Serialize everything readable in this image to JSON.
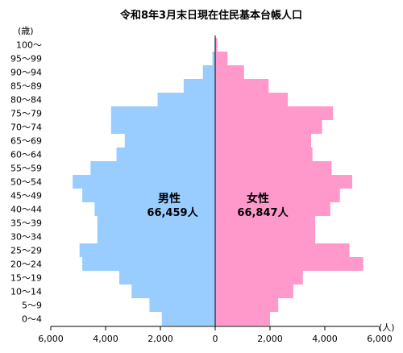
{
  "chart_data": {
    "type": "bar",
    "title": "令和8年3月末日現在住民基本台帳人口",
    "y_unit_label": "(歳)",
    "x_unit_label": "(人)",
    "categories": [
      "0～4",
      "5～9",
      "10～14",
      "15～19",
      "20～24",
      "25～29",
      "30～34",
      "35～39",
      "40～44",
      "45～49",
      "50～54",
      "55～59",
      "60～64",
      "65～69",
      "70～74",
      "75～79",
      "80～84",
      "85～89",
      "90～94",
      "95～99",
      "100～"
    ],
    "x_ticks": [
      "6,000",
      "4,000",
      "2,000",
      "0",
      "2,000",
      "4,000",
      "6,000"
    ],
    "xlim": [
      -6000,
      6000
    ],
    "grid": false,
    "series": [
      {
        "name": "男性",
        "total_label": "66,459人",
        "color": "#99ccff",
        "values": [
          1950,
          2400,
          3050,
          3500,
          4850,
          4950,
          4300,
          4300,
          4400,
          4850,
          5200,
          4550,
          3600,
          3300,
          3800,
          3800,
          2100,
          1150,
          450,
          100,
          20
        ]
      },
      {
        "name": "女性",
        "total_label": "66,847人",
        "color": "#ff99cc",
        "values": [
          2000,
          2300,
          2850,
          3200,
          5400,
          4900,
          3650,
          3650,
          4200,
          4550,
          5000,
          4250,
          3550,
          3500,
          3900,
          4300,
          2650,
          1950,
          1050,
          450,
          80
        ]
      }
    ]
  }
}
